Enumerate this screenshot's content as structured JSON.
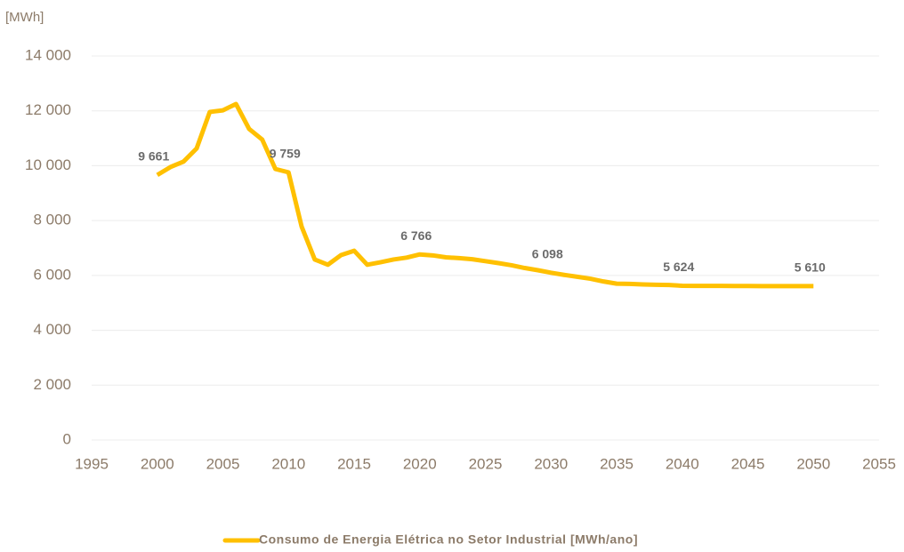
{
  "chart_data": {
    "type": "line",
    "y_label": "[MWh]",
    "x": [
      2000,
      2001,
      2002,
      2003,
      2004,
      2005,
      2006,
      2007,
      2008,
      2009,
      2010,
      2011,
      2012,
      2013,
      2014,
      2015,
      2016,
      2017,
      2018,
      2019,
      2020,
      2021,
      2022,
      2023,
      2024,
      2025,
      2026,
      2027,
      2028,
      2029,
      2030,
      2031,
      2032,
      2033,
      2034,
      2035,
      2036,
      2037,
      2038,
      2039,
      2040,
      2041,
      2042,
      2043,
      2044,
      2045,
      2046,
      2047,
      2048,
      2049,
      2050
    ],
    "series": [
      {
        "name": "Consumo de Energia Elétrica no Setor Industrial [MWh/ano]",
        "color": "#ffc000",
        "values": [
          9661,
          9950,
          10150,
          10630,
          11960,
          12020,
          12250,
          11340,
          10950,
          9880,
          9759,
          7780,
          6580,
          6390,
          6740,
          6900,
          6390,
          6480,
          6580,
          6650,
          6766,
          6730,
          6660,
          6630,
          6590,
          6520,
          6450,
          6370,
          6270,
          6190,
          6098,
          6020,
          5950,
          5880,
          5780,
          5700,
          5690,
          5670,
          5660,
          5650,
          5624,
          5620,
          5620,
          5618,
          5615,
          5615,
          5612,
          5612,
          5611,
          5610,
          5610
        ],
        "value_labels": [
          "9 661",
          null,
          null,
          null,
          null,
          null,
          null,
          null,
          null,
          null,
          "9 759",
          null,
          null,
          null,
          null,
          null,
          null,
          null,
          null,
          null,
          "6 766",
          null,
          null,
          null,
          null,
          null,
          null,
          null,
          null,
          null,
          "6 098",
          null,
          null,
          null,
          null,
          null,
          null,
          null,
          null,
          null,
          "5 624",
          null,
          null,
          null,
          null,
          null,
          null,
          null,
          null,
          null,
          "5 610"
        ]
      }
    ],
    "xlim": [
      1995,
      2055
    ],
    "xticks": [
      1995,
      2000,
      2005,
      2010,
      2015,
      2020,
      2025,
      2030,
      2035,
      2040,
      2045,
      2050,
      2055
    ],
    "ylim": [
      0,
      14000
    ],
    "yticks": [
      0,
      {
        "value": 2000,
        "label": "2 000"
      },
      {
        "value": 4000,
        "label": "4 000"
      },
      {
        "value": 6000,
        "label": "6 000"
      },
      {
        "value": 8000,
        "label": "8 000"
      },
      {
        "value": 10000,
        "label": "10 000"
      },
      {
        "value": 12000,
        "label": "12 000"
      },
      {
        "value": 14000,
        "label": "14 000"
      }
    ],
    "grid": true,
    "legend": "bottom"
  }
}
